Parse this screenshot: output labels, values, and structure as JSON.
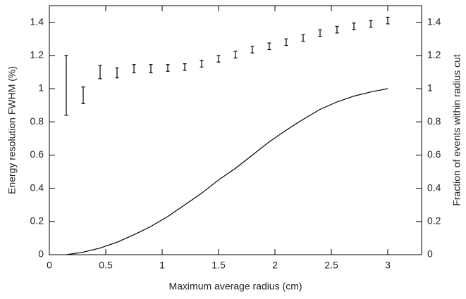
{
  "chart_data": {
    "type": "errorbar",
    "xlabel": "Maximum average radius (cm)",
    "ylabel": "Energy resolution FWHM (%)",
    "y2label": "Fraction of events within radius cut",
    "x": [
      0.15,
      0.3,
      0.45,
      0.6,
      0.75,
      0.9,
      1.05,
      1.2,
      1.35,
      1.5,
      1.65,
      1.8,
      1.95,
      2.1,
      2.25,
      2.4,
      2.55,
      2.7,
      2.85,
      3.0
    ],
    "series": [
      {
        "color": "#000000",
        "values": [
          1.02,
          0.96,
          1.1,
          1.095,
          1.12,
          1.12,
          1.125,
          1.13,
          1.15,
          1.18,
          1.205,
          1.235,
          1.255,
          1.28,
          1.305,
          1.335,
          1.355,
          1.375,
          1.39,
          1.41
        ],
        "errors": [
          0.18,
          0.05,
          0.04,
          0.03,
          0.025,
          0.025,
          0.02,
          0.02,
          0.02,
          0.02,
          0.02,
          0.02,
          0.02,
          0.02,
          0.02,
          0.02,
          0.02,
          0.02,
          0.02,
          0.02
        ]
      },
      {
        "color": "#000000",
        "axis": "y2",
        "values": [
          0,
          0.015,
          0.04,
          0.075,
          0.12,
          0.17,
          0.23,
          0.3,
          0.37,
          0.45,
          0.52,
          0.6,
          0.68,
          0.75,
          0.815,
          0.875,
          0.92,
          0.955,
          0.98,
          1.0
        ]
      }
    ],
    "xlim": [
      0,
      3.3
    ],
    "xticks": [
      0,
      0.5,
      1,
      1.5,
      2,
      2.5,
      3
    ],
    "ylim": [
      0,
      1.5
    ],
    "yticks": [
      0,
      0.2,
      0.4,
      0.6,
      0.8,
      1,
      1.2,
      1.4
    ],
    "y2lim": [
      0,
      1.5
    ],
    "y2ticks": [
      0,
      0.2,
      0.4,
      0.6,
      0.8,
      1,
      1.2,
      1.4
    ]
  }
}
